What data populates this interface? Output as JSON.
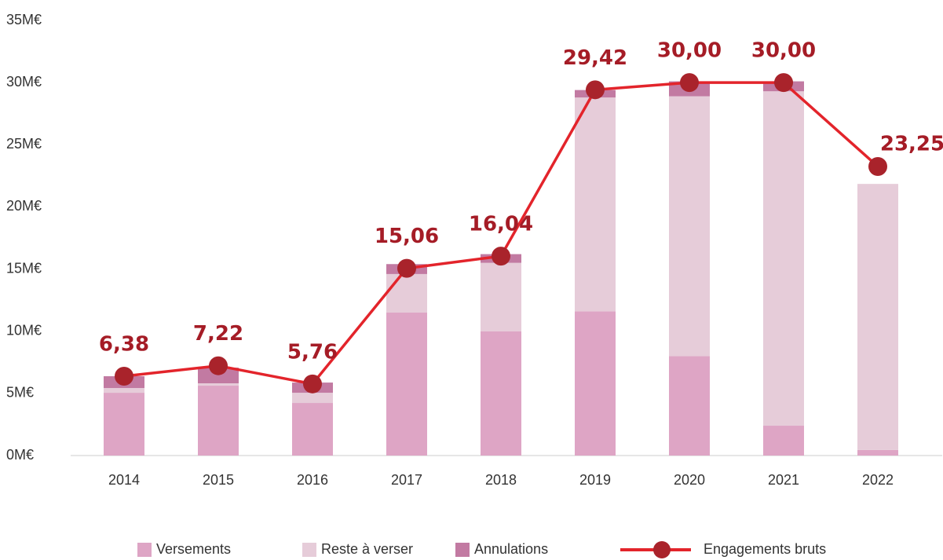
{
  "chart_data": {
    "type": "bar",
    "stacked": true,
    "categories": [
      "2014",
      "2015",
      "2016",
      "2017",
      "2018",
      "2019",
      "2020",
      "2021",
      "2022"
    ],
    "series": [
      {
        "name": "Versements",
        "color": "#dea5c5",
        "values": [
          5.05,
          5.62,
          4.23,
          11.5,
          10.0,
          11.6,
          8.0,
          2.4,
          0.45
        ]
      },
      {
        "name": "Reste à verser",
        "color": "#e6ccd9",
        "values": [
          0.38,
          0.19,
          0.82,
          3.1,
          5.5,
          17.2,
          20.9,
          26.9,
          21.4
        ]
      },
      {
        "name": "Annulations",
        "color": "#c27aa2",
        "values": [
          0.95,
          1.26,
          0.82,
          0.8,
          0.7,
          0.6,
          1.2,
          0.8,
          0
        ]
      },
      {
        "name": "Engagements bruts",
        "type": "line",
        "color": "#e3242b",
        "marker_color": "#a9232b",
        "values": [
          6.38,
          7.22,
          5.76,
          15.06,
          16.04,
          29.42,
          30.0,
          30.0,
          23.25
        ],
        "value_labels": [
          "6,38",
          "7,22",
          "5,76",
          "15,06",
          "16,04",
          "29,42",
          "30,00",
          "30,00",
          "23,25"
        ]
      }
    ],
    "ylim": [
      0,
      35
    ],
    "yticks": [
      {
        "value": 0,
        "label": "0M€"
      },
      {
        "value": 5,
        "label": "5M€"
      },
      {
        "value": 10,
        "label": "10M€"
      },
      {
        "value": 15,
        "label": "15M€"
      },
      {
        "value": 20,
        "label": "20M€"
      },
      {
        "value": 25,
        "label": "25M€"
      },
      {
        "value": 30,
        "label": "30M€"
      },
      {
        "value": 35,
        "label": "35M€"
      }
    ],
    "grid": false,
    "legend": "bottom"
  }
}
